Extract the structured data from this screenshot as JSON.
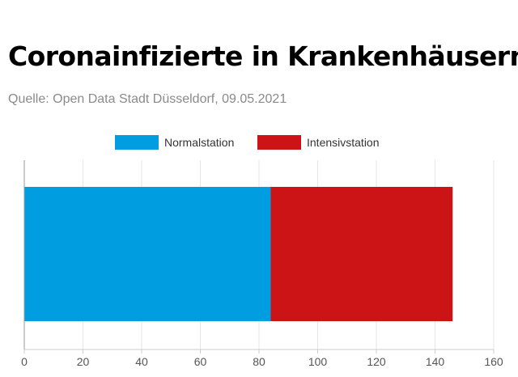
{
  "header": {
    "title": "Coronainfizierte in Krankenhäusern",
    "subtitle": "Quelle: Open Data Stadt Düsseldorf, 09.05.2021"
  },
  "chart_data": {
    "type": "bar",
    "orientation": "horizontal",
    "stacked": true,
    "categories": [
      ""
    ],
    "series": [
      {
        "name": "Normalstation",
        "values": [
          84
        ],
        "color": "#009ee0"
      },
      {
        "name": "Intensivstation",
        "values": [
          62
        ],
        "color": "#cc1417"
      }
    ],
    "xlim": [
      0,
      160
    ],
    "xticks": [
      0,
      20,
      40,
      60,
      80,
      100,
      120,
      140,
      160
    ],
    "grid": true,
    "legend": "top-center"
  }
}
